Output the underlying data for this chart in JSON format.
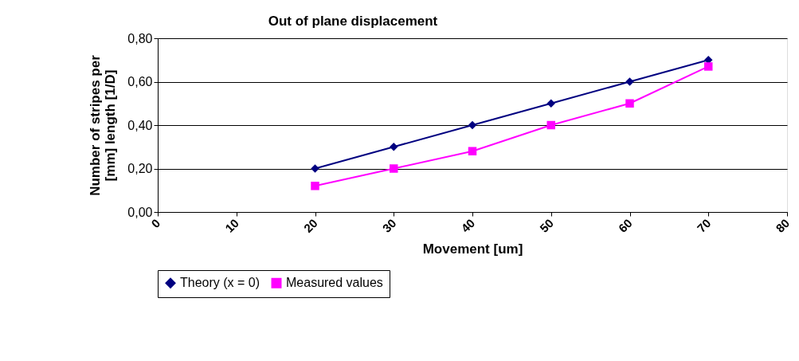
{
  "chart_data": {
    "type": "line",
    "title": "Out of plane displacement",
    "xlabel": "Movement [um]",
    "ylabel": [
      "Number of stripes per",
      "[mm] length [1/D]"
    ],
    "x": [
      20,
      30,
      40,
      50,
      60,
      70
    ],
    "series": [
      {
        "name": "Theory (x = 0)",
        "color": "#000080",
        "marker": "diamond",
        "values": [
          0.2,
          0.3,
          0.4,
          0.5,
          0.6,
          0.7
        ]
      },
      {
        "name": "Measured values",
        "color": "#ff00ff",
        "marker": "square",
        "values": [
          0.12,
          0.2,
          0.28,
          0.4,
          0.5,
          0.67
        ]
      }
    ],
    "xlim": [
      0,
      80
    ],
    "xticks": [
      0,
      10,
      20,
      30,
      40,
      50,
      60,
      70,
      80
    ],
    "ylim": [
      0,
      0.8
    ],
    "yticks": [
      {
        "value": 0,
        "label": "0,00"
      },
      {
        "value": 0.2,
        "label": "0,20"
      },
      {
        "value": 0.4,
        "label": "0,40"
      },
      {
        "value": 0.6,
        "label": "0,60"
      },
      {
        "value": 0.8,
        "label": "0,80"
      }
    ],
    "grid": "y",
    "legend": "bottom",
    "line_style": "solid"
  }
}
